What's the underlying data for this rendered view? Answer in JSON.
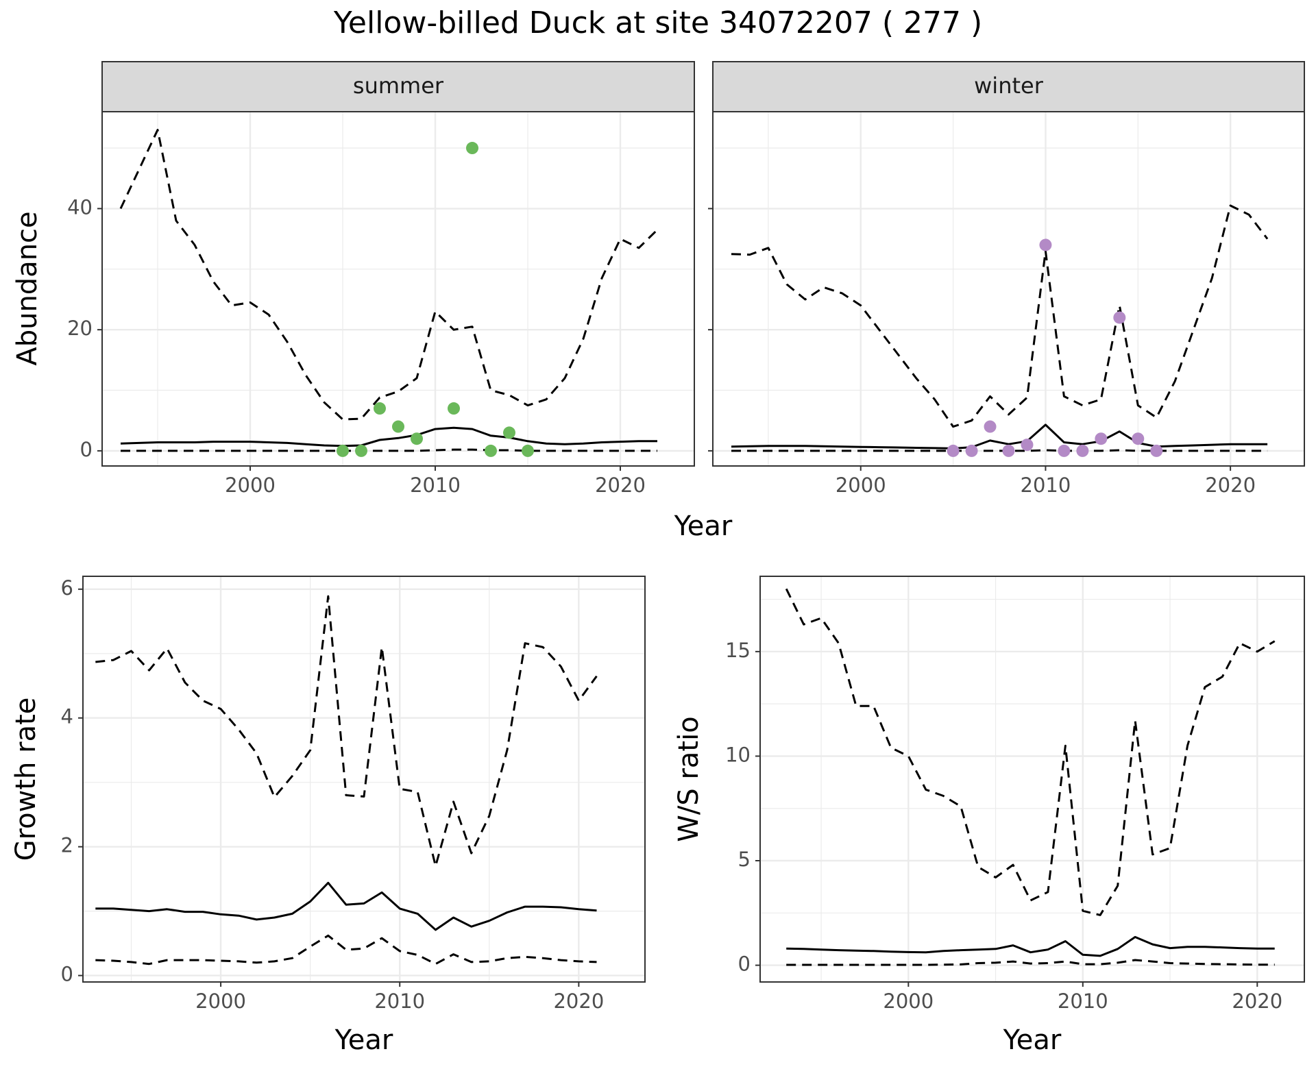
{
  "figure": {
    "title": "Yellow-billed Duck at site 34072207 ( 277 )"
  },
  "colors": {
    "summer_points": "#6ab85a",
    "winter_points": "#b38ac6",
    "line": "#000000",
    "strip_bg": "#d9d9d9",
    "grid": "#ebebeb"
  },
  "chart_data": [
    {
      "type": "line",
      "panel": "abundance",
      "facets": [
        "summer",
        "winter"
      ],
      "xlabel": "Year",
      "ylabel": "Abundance",
      "xlim": [
        1992,
        2024
      ],
      "ylim": [
        -2.5,
        56
      ],
      "xticks": [
        2000,
        2010,
        2020
      ],
      "yticks": [
        0,
        20,
        40
      ],
      "grid": true,
      "series_by_facet": {
        "summer": {
          "x": [
            1993,
            1994,
            1995,
            1996,
            1997,
            1998,
            1999,
            2000,
            2001,
            2002,
            2003,
            2004,
            2005,
            2006,
            2007,
            2008,
            2009,
            2010,
            2011,
            2012,
            2013,
            2014,
            2015,
            2016,
            2017,
            2018,
            2019,
            2020,
            2021,
            2022
          ],
          "mean": [
            1.2,
            1.3,
            1.4,
            1.4,
            1.4,
            1.5,
            1.5,
            1.5,
            1.4,
            1.3,
            1.1,
            0.9,
            0.8,
            0.9,
            1.8,
            2.1,
            2.6,
            3.6,
            3.8,
            3.6,
            2.5,
            2.2,
            1.6,
            1.2,
            1.1,
            1.2,
            1.4,
            1.5,
            1.6,
            1.6
          ],
          "lower": [
            0,
            0,
            0,
            0,
            0,
            0,
            0,
            0,
            0,
            0,
            0,
            0,
            0,
            0,
            0,
            0,
            0,
            0.1,
            0.2,
            0.2,
            0.1,
            0.1,
            0,
            0,
            0,
            0,
            0,
            0,
            0,
            0
          ],
          "upper": [
            40,
            46.5,
            53,
            38,
            34,
            28,
            24,
            24.5,
            22.5,
            18,
            12.5,
            8,
            5.2,
            5.3,
            8.8,
            9.8,
            12,
            23,
            20,
            20.5,
            10,
            9.2,
            7.5,
            8.5,
            12,
            18.5,
            28.5,
            35,
            33.5,
            36.5
          ],
          "observed_x": [
            2005,
            2006,
            2007,
            2008,
            2009,
            2011,
            2012,
            2013,
            2014,
            2015
          ],
          "observed_y": [
            0,
            0,
            7,
            4,
            2,
            7,
            50,
            0,
            3,
            0
          ]
        },
        "winter": {
          "x": [
            1993,
            1994,
            1995,
            1996,
            1997,
            1998,
            1999,
            2000,
            2001,
            2002,
            2003,
            2004,
            2005,
            2006,
            2007,
            2008,
            2009,
            2010,
            2011,
            2012,
            2013,
            2014,
            2015,
            2016,
            2017,
            2018,
            2019,
            2020,
            2021,
            2022
          ],
          "mean": [
            0.7,
            0.75,
            0.8,
            0.8,
            0.8,
            0.75,
            0.7,
            0.65,
            0.6,
            0.55,
            0.5,
            0.45,
            0.4,
            0.6,
            1.7,
            1.1,
            1.6,
            4.3,
            1.4,
            1.1,
            1.6,
            3.2,
            1.3,
            0.7,
            0.8,
            0.9,
            1.0,
            1.1,
            1.1,
            1.1
          ],
          "lower": [
            0,
            0,
            0,
            0,
            0,
            0,
            0,
            0,
            0,
            0,
            0,
            0,
            0,
            0,
            0,
            0,
            0,
            0.1,
            0,
            0,
            0,
            0.1,
            0,
            0,
            0,
            0,
            0,
            0,
            0,
            0
          ],
          "upper": [
            32.5,
            32.4,
            33.5,
            27.5,
            25,
            27,
            26,
            24,
            20,
            16,
            12,
            8.5,
            4,
            5,
            9,
            6,
            8.8,
            33,
            9,
            7.5,
            8.5,
            24,
            7.5,
            5.5,
            11.5,
            20,
            28.5,
            40.5,
            39,
            35
          ],
          "observed_x": [
            2005,
            2006,
            2007,
            2008,
            2009,
            2010,
            2011,
            2012,
            2013,
            2014,
            2015,
            2016
          ],
          "observed_y": [
            0,
            0,
            4,
            0,
            1,
            34,
            0,
            0,
            2,
            22,
            2,
            0
          ]
        }
      }
    },
    {
      "type": "line",
      "panel": "growth",
      "xlabel": "Year",
      "ylabel": "Growth rate",
      "xlim": [
        1992.3,
        2023.7
      ],
      "ylim": [
        -0.1,
        6.2
      ],
      "xticks": [
        2000,
        2010,
        2020
      ],
      "yticks": [
        0,
        2,
        4,
        6
      ],
      "grid": true,
      "x": [
        1993,
        1994,
        1995,
        1996,
        1997,
        1998,
        1999,
        2000,
        2001,
        2002,
        2003,
        2004,
        2005,
        2006,
        2007,
        2008,
        2009,
        2010,
        2011,
        2012,
        2013,
        2014,
        2015,
        2016,
        2017,
        2018,
        2019,
        2020,
        2021
      ],
      "mean": [
        1.04,
        1.04,
        1.02,
        1.0,
        1.03,
        0.99,
        0.99,
        0.95,
        0.93,
        0.87,
        0.9,
        0.96,
        1.15,
        1.44,
        1.1,
        1.12,
        1.29,
        1.04,
        0.96,
        0.71,
        0.9,
        0.76,
        0.85,
        0.98,
        1.07,
        1.07,
        1.06,
        1.03,
        1.01
      ],
      "lower": [
        0.24,
        0.23,
        0.21,
        0.18,
        0.24,
        0.24,
        0.24,
        0.23,
        0.22,
        0.2,
        0.22,
        0.27,
        0.45,
        0.62,
        0.4,
        0.42,
        0.58,
        0.38,
        0.32,
        0.18,
        0.33,
        0.21,
        0.22,
        0.27,
        0.29,
        0.27,
        0.24,
        0.22,
        0.21
      ],
      "upper": [
        4.87,
        4.9,
        5.04,
        4.74,
        5.08,
        4.55,
        4.27,
        4.14,
        3.82,
        3.45,
        2.77,
        3.1,
        3.5,
        5.89,
        2.8,
        2.78,
        5.1,
        2.9,
        2.85,
        1.7,
        2.7,
        1.9,
        2.48,
        3.5,
        5.16,
        5.1,
        4.8,
        4.27,
        4.65
      ]
    },
    {
      "type": "line",
      "panel": "ws_ratio",
      "xlabel": "Year",
      "ylabel": "W/S ratio",
      "xlim": [
        1991.5,
        2022.7
      ],
      "ylim": [
        -0.8,
        18.6
      ],
      "xticks": [
        2000,
        2010,
        2020
      ],
      "yticks": [
        0,
        5,
        10,
        15
      ],
      "grid": true,
      "x": [
        1993,
        1994,
        1995,
        1996,
        1997,
        1998,
        1999,
        2000,
        2001,
        2002,
        2003,
        2004,
        2005,
        2006,
        2007,
        2008,
        2009,
        2010,
        2011,
        2012,
        2013,
        2014,
        2015,
        2016,
        2017,
        2018,
        2019,
        2020,
        2021
      ],
      "mean": [
        0.8,
        0.78,
        0.75,
        0.72,
        0.7,
        0.68,
        0.65,
        0.63,
        0.62,
        0.68,
        0.72,
        0.75,
        0.78,
        0.95,
        0.62,
        0.75,
        1.15,
        0.5,
        0.45,
        0.78,
        1.35,
        1.0,
        0.82,
        0.88,
        0.88,
        0.85,
        0.82,
        0.8,
        0.8
      ],
      "lower": [
        0.02,
        0.02,
        0.02,
        0.02,
        0.02,
        0.02,
        0.02,
        0.02,
        0.02,
        0.03,
        0.04,
        0.1,
        0.12,
        0.18,
        0.08,
        0.1,
        0.18,
        0.05,
        0.05,
        0.12,
        0.25,
        0.18,
        0.1,
        0.08,
        0.06,
        0.05,
        0.04,
        0.03,
        0.03
      ],
      "upper": [
        18.0,
        16.3,
        16.6,
        15.4,
        12.4,
        12.4,
        10.4,
        10.0,
        8.4,
        8.1,
        7.6,
        4.7,
        4.2,
        4.8,
        3.1,
        3.5,
        10.5,
        2.6,
        2.4,
        3.8,
        11.7,
        5.3,
        5.6,
        10.5,
        13.3,
        13.8,
        15.4,
        15.0,
        15.5
      ]
    }
  ]
}
